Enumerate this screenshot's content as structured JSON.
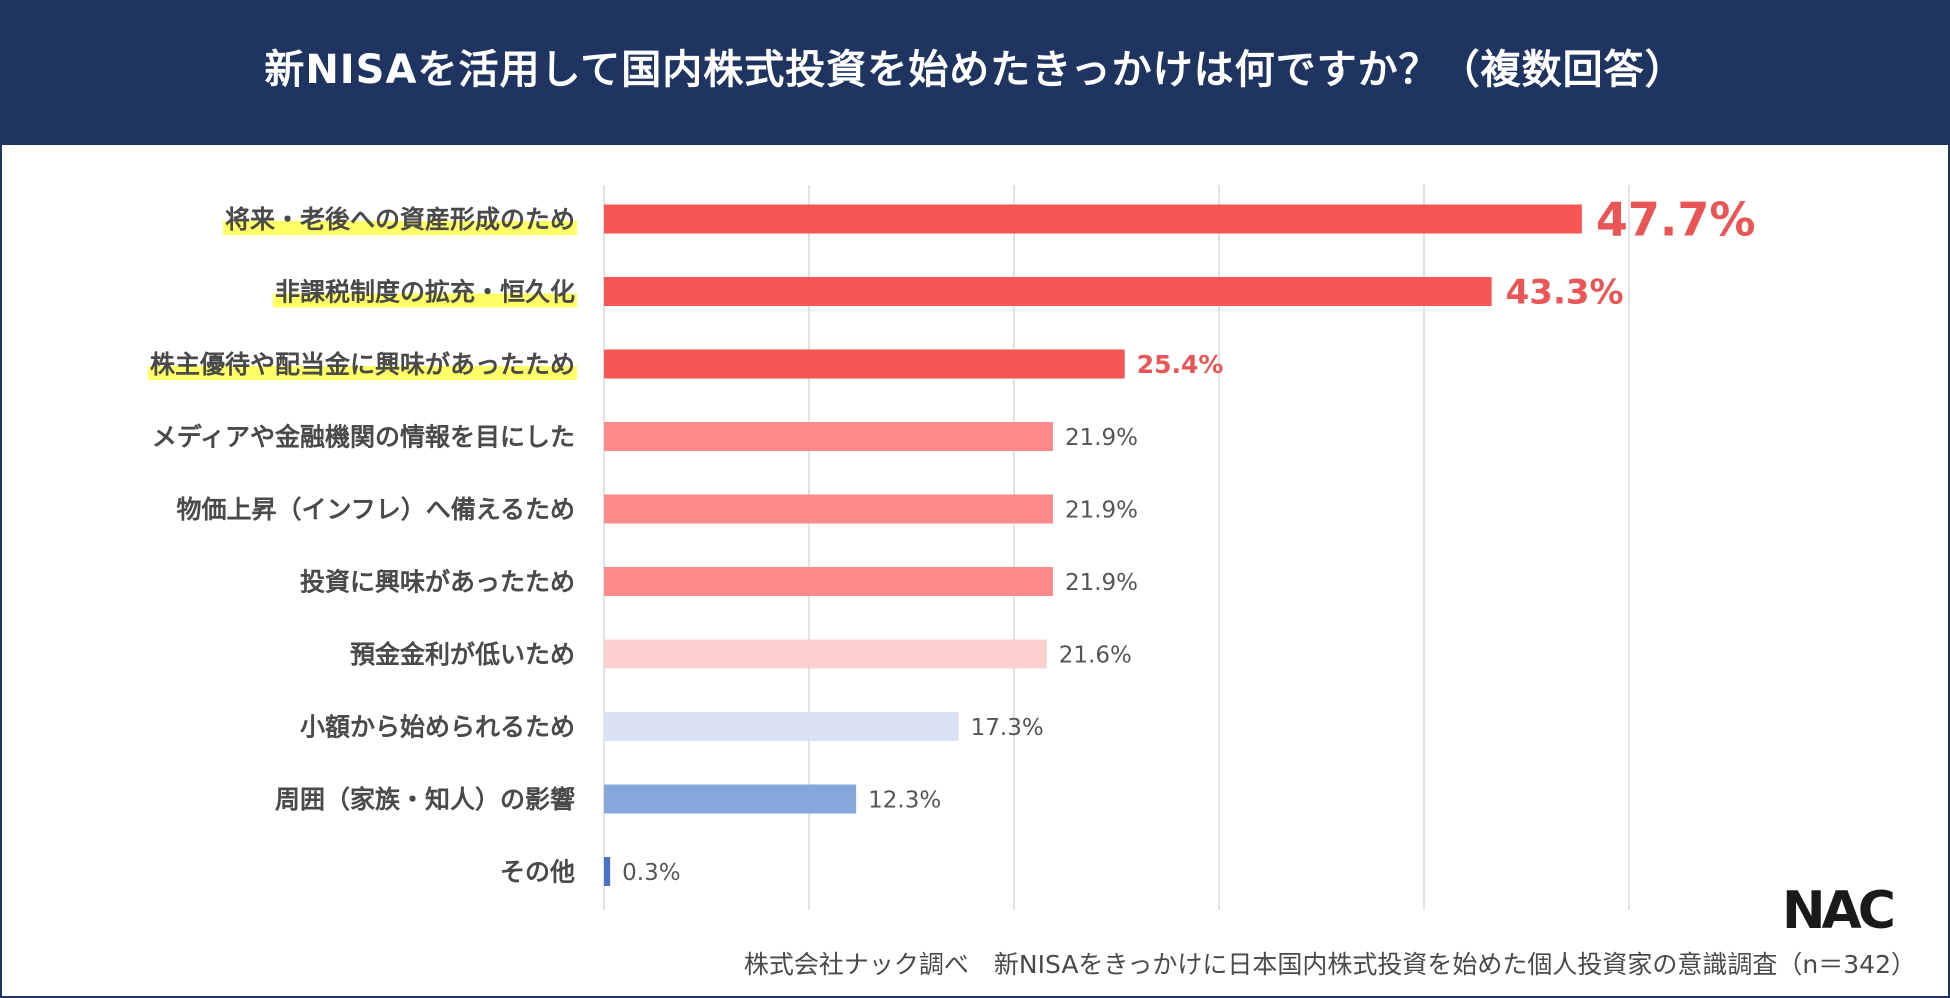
{
  "title": "新NISAを活用して国内株式投資を始めたきっかけは何ですか？（複数回答）",
  "footer": "株式会社ナック調べ　新NISAをきっかけに日本国内株式投資を始めた個人投資家の意識調査（n＝342）",
  "logo_text": "NAC",
  "chart_data": {
    "type": "bar",
    "orientation": "horizontal",
    "title": "新NISAを活用して国内株式投資を始めたきっかけは何ですか？（複数回答）",
    "xlabel": "",
    "ylabel": "",
    "xlim": [
      0,
      50
    ],
    "grid": true,
    "unit": "%",
    "categories": [
      "将来・老後への資産形成のため",
      "非課税制度の拡充・恒久化",
      "株主優待や配当金に興味があったため",
      "メディアや金融機関の情報を目にした",
      "物価上昇（インフレ）へ備えるため",
      "投資に興味があったため",
      "預金金利が低いため",
      "小額から始められるため",
      "周囲（家族・知人）の影響",
      "その他"
    ],
    "values": [
      47.7,
      43.3,
      25.4,
      21.9,
      21.9,
      21.9,
      21.6,
      17.3,
      12.3,
      0.3
    ],
    "value_labels": [
      "47.7%",
      "43.3%",
      "25.4%",
      "21.9%",
      "21.9%",
      "21.9%",
      "21.6%",
      "17.3%",
      "12.3%",
      "0.3%"
    ],
    "bar_colors": [
      "#f75454",
      "#f75454",
      "#f75454",
      "#fc8a8a",
      "#fc8a8a",
      "#fc8a8a",
      "#fdd0d0",
      "#dae3f3",
      "#86a7dc",
      "#4c72c4"
    ],
    "label_colors": [
      "#ea5656",
      "#ea5656",
      "#ea5656",
      "#555555",
      "#555555",
      "#555555",
      "#555555",
      "#555555",
      "#555555",
      "#555555"
    ],
    "highlighted_categories": [
      0,
      1,
      2
    ],
    "highlight_color": "#ffff66"
  }
}
